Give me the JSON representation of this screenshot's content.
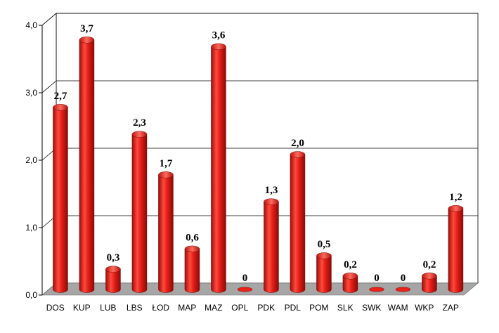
{
  "chart_data": {
    "type": "bar",
    "title": "",
    "xlabel": "",
    "ylabel": "",
    "categories": [
      "DOS",
      "KUP",
      "LUB",
      "LBS",
      "ŁOD",
      "MAP",
      "MAZ",
      "OPL",
      "PDK",
      "PDL",
      "POM",
      "SLK",
      "SWK",
      "WAM",
      "WKP",
      "ZAP"
    ],
    "values": [
      2.7,
      3.7,
      0.3,
      2.3,
      1.7,
      0.6,
      3.6,
      0,
      1.3,
      2.0,
      0.5,
      0.2,
      0,
      0,
      0.2,
      1.2
    ],
    "value_labels": [
      "2,7",
      "3,7",
      "0,3",
      "2,3",
      "1,7",
      "0,6",
      "3,6",
      "0",
      "1,3",
      "2,0",
      "0,5",
      "0,2",
      "0",
      "0",
      "0,2",
      "1,2"
    ],
    "ylim": [
      0,
      4
    ],
    "yticks": [
      0,
      1,
      2,
      3,
      4
    ],
    "ytick_labels": [
      "0,0",
      "1,0",
      "2,0",
      "3,0",
      "4,0"
    ],
    "grid": true,
    "legend": "none",
    "bar_color": "#e8231c",
    "floor_color": "#a6a6a6"
  }
}
